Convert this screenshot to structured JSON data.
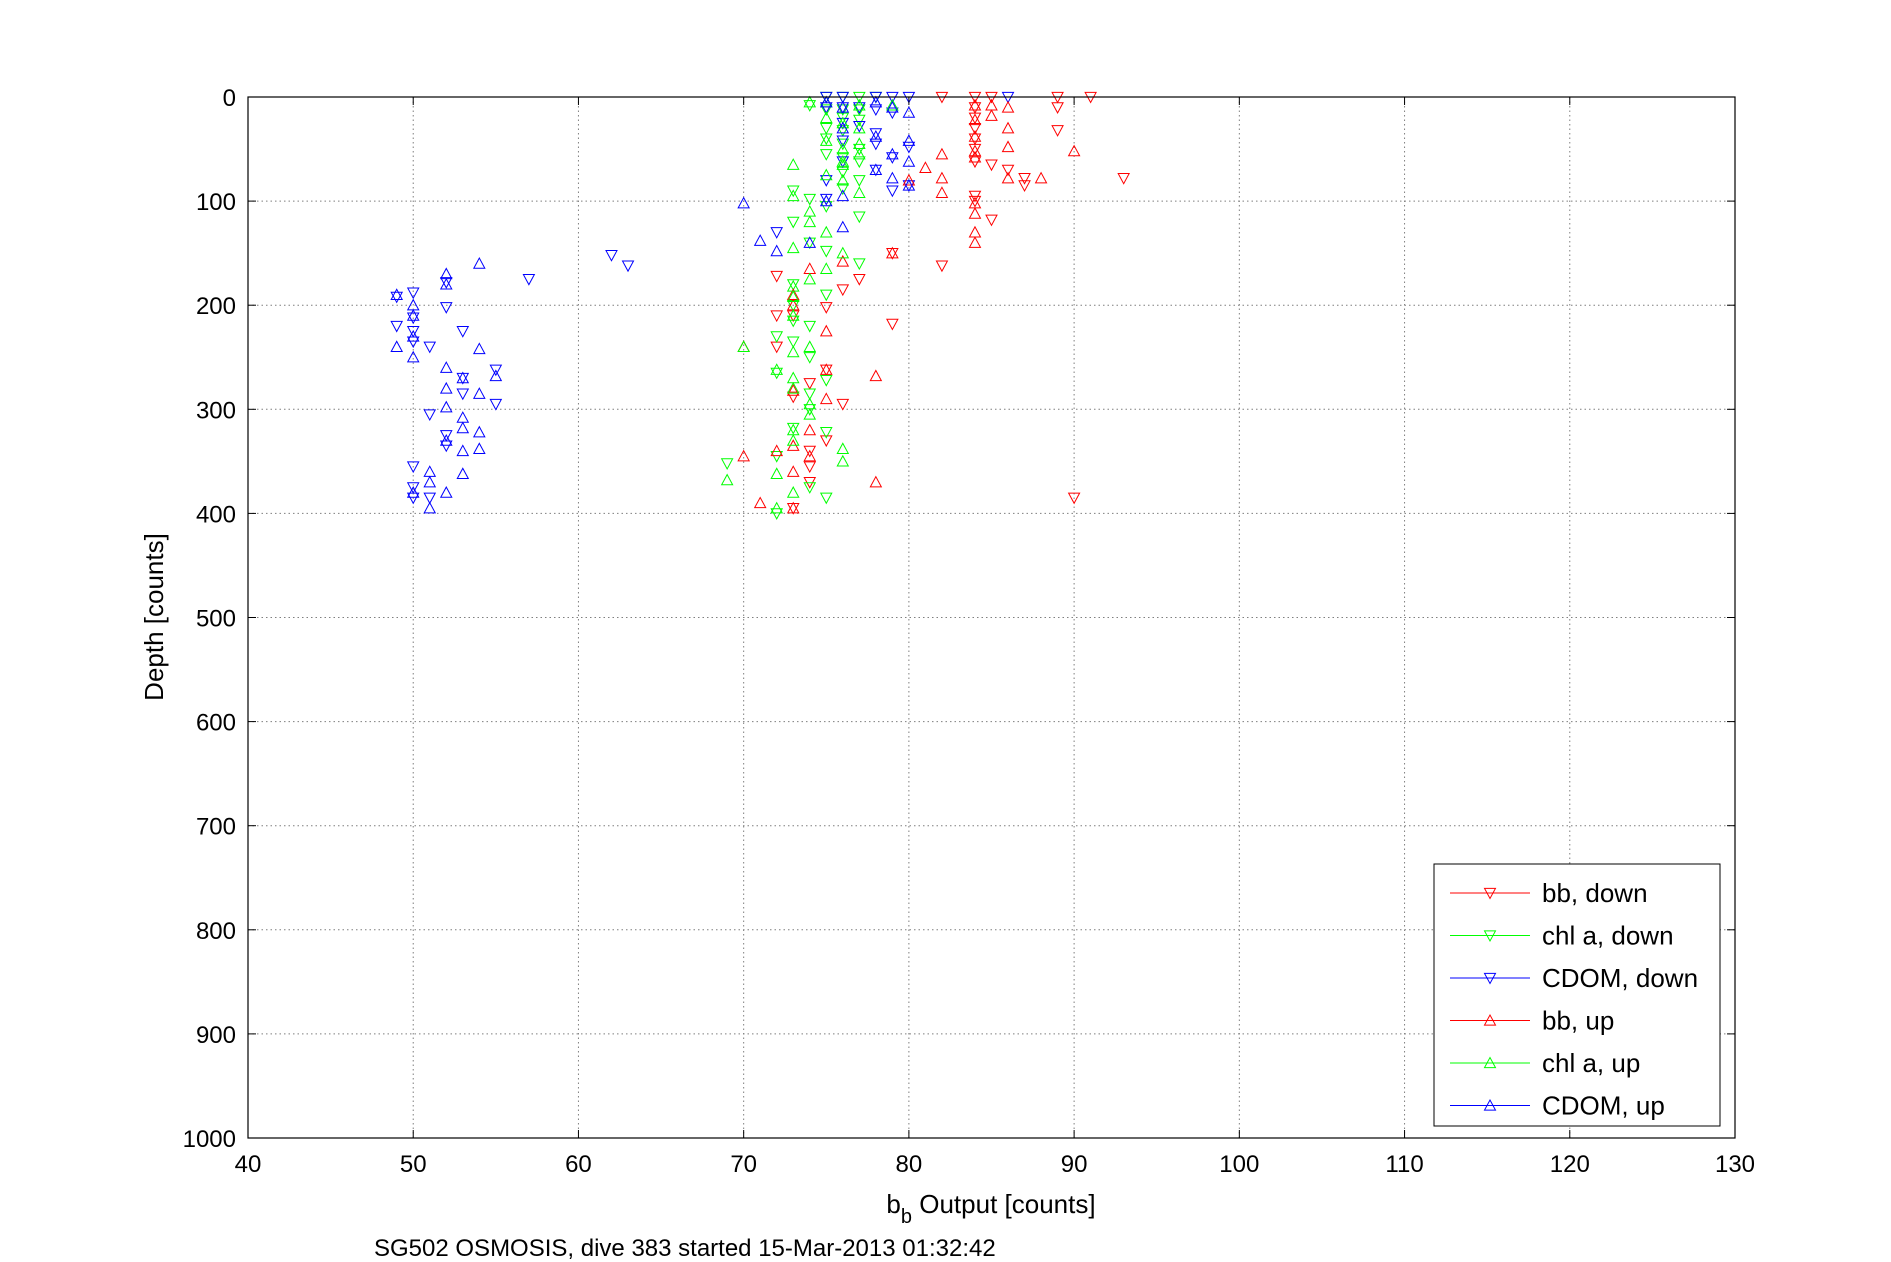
{
  "chart_data": {
    "type": "scatter",
    "title": "",
    "caption": "SG502 OSMOSIS, dive 383 started 15-Mar-2013 01:32:42",
    "xlabel_main": "b",
    "xlabel_sub": "b",
    "xlabel_rest": " Output [counts]",
    "ylabel": "Depth [counts]",
    "xlim": [
      40,
      130
    ],
    "ylim": [
      0,
      1000
    ],
    "y_reversed": true,
    "grid": true,
    "legend_position": "bottom-right",
    "xticks": [
      "40",
      "50",
      "60",
      "70",
      "80",
      "90",
      "100",
      "110",
      "120",
      "130"
    ],
    "yticks": [
      "0",
      "100",
      "200",
      "300",
      "400",
      "500",
      "600",
      "700",
      "800",
      "900",
      "1000"
    ],
    "series": [
      {
        "name": "bb, down",
        "color": "#ff0000",
        "marker": "triangle-down",
        "points": [
          [
            82,
            0
          ],
          [
            84,
            0
          ],
          [
            85,
            0
          ],
          [
            89,
            0
          ],
          [
            91,
            0
          ],
          [
            84,
            10
          ],
          [
            89,
            10
          ],
          [
            84,
            20
          ],
          [
            84,
            30
          ],
          [
            84,
            40
          ],
          [
            89,
            32
          ],
          [
            84,
            50
          ],
          [
            84,
            62
          ],
          [
            85,
            65
          ],
          [
            86,
            70
          ],
          [
            87,
            78
          ],
          [
            93,
            78
          ],
          [
            87,
            85
          ],
          [
            84,
            95
          ],
          [
            84,
            100
          ],
          [
            85,
            118
          ],
          [
            79,
            150
          ],
          [
            82,
            162
          ],
          [
            72,
            172
          ],
          [
            77,
            175
          ],
          [
            76,
            185
          ],
          [
            75,
            202
          ],
          [
            72,
            210
          ],
          [
            73,
            210
          ],
          [
            79,
            218
          ],
          [
            72,
            240
          ],
          [
            75,
            262
          ],
          [
            74,
            275
          ],
          [
            76,
            295
          ],
          [
            73,
            288
          ],
          [
            75,
            330
          ],
          [
            74,
            340
          ],
          [
            74,
            355
          ],
          [
            74,
            370
          ],
          [
            73,
            395
          ],
          [
            90,
            385
          ]
        ]
      },
      {
        "name": "chl a, down",
        "color": "#00ff00",
        "marker": "triangle-down",
        "points": [
          [
            75,
            0
          ],
          [
            76,
            0
          ],
          [
            77,
            0
          ],
          [
            78,
            0
          ],
          [
            74,
            8
          ],
          [
            75,
            12
          ],
          [
            76,
            12
          ],
          [
            77,
            12
          ],
          [
            76,
            20
          ],
          [
            77,
            22
          ],
          [
            75,
            30
          ],
          [
            76,
            32
          ],
          [
            75,
            40
          ],
          [
            76,
            45
          ],
          [
            77,
            50
          ],
          [
            75,
            55
          ],
          [
            76,
            58
          ],
          [
            77,
            62
          ],
          [
            76,
            72
          ],
          [
            77,
            80
          ],
          [
            76,
            88
          ],
          [
            73,
            90
          ],
          [
            74,
            98
          ],
          [
            75,
            105
          ],
          [
            77,
            115
          ],
          [
            73,
            120
          ],
          [
            74,
            140
          ],
          [
            75,
            148
          ],
          [
            77,
            160
          ],
          [
            73,
            180
          ],
          [
            75,
            190
          ],
          [
            73,
            200
          ],
          [
            73,
            215
          ],
          [
            74,
            220
          ],
          [
            72,
            230
          ],
          [
            73,
            235
          ],
          [
            74,
            250
          ],
          [
            72,
            265
          ],
          [
            75,
            272
          ],
          [
            74,
            285
          ],
          [
            74,
            300
          ],
          [
            73,
            318
          ],
          [
            75,
            322
          ],
          [
            72,
            345
          ],
          [
            69,
            352
          ],
          [
            74,
            375
          ],
          [
            75,
            385
          ],
          [
            72,
            400
          ]
        ]
      },
      {
        "name": "CDOM, down",
        "color": "#0000ff",
        "marker": "triangle-down",
        "points": [
          [
            75,
            0
          ],
          [
            76,
            0
          ],
          [
            78,
            0
          ],
          [
            79,
            0
          ],
          [
            80,
            0
          ],
          [
            86,
            0
          ],
          [
            75,
            10
          ],
          [
            76,
            10
          ],
          [
            77,
            10
          ],
          [
            78,
            12
          ],
          [
            79,
            15
          ],
          [
            76,
            25
          ],
          [
            77,
            28
          ],
          [
            78,
            35
          ],
          [
            76,
            42
          ],
          [
            78,
            45
          ],
          [
            80,
            48
          ],
          [
            79,
            58
          ],
          [
            76,
            62
          ],
          [
            78,
            70
          ],
          [
            75,
            80
          ],
          [
            79,
            90
          ],
          [
            80,
            85
          ],
          [
            75,
            98
          ],
          [
            72,
            130
          ],
          [
            62,
            152
          ],
          [
            63,
            162
          ],
          [
            57,
            175
          ],
          [
            52,
            178
          ],
          [
            49,
            192
          ],
          [
            50,
            188
          ],
          [
            52,
            202
          ],
          [
            50,
            212
          ],
          [
            50,
            225
          ],
          [
            49,
            220
          ],
          [
            53,
            225
          ],
          [
            50,
            235
          ],
          [
            51,
            240
          ],
          [
            53,
            270
          ],
          [
            55,
            262
          ],
          [
            55,
            295
          ],
          [
            53,
            285
          ],
          [
            51,
            305
          ],
          [
            52,
            325
          ],
          [
            52,
            335
          ],
          [
            50,
            355
          ],
          [
            50,
            375
          ],
          [
            51,
            385
          ],
          [
            50,
            385
          ]
        ]
      },
      {
        "name": "bb, up",
        "color": "#ff0000",
        "marker": "triangle-up",
        "points": [
          [
            84,
            8
          ],
          [
            85,
            8
          ],
          [
            86,
            10
          ],
          [
            85,
            18
          ],
          [
            84,
            22
          ],
          [
            86,
            30
          ],
          [
            84,
            38
          ],
          [
            86,
            48
          ],
          [
            84,
            52
          ],
          [
            82,
            55
          ],
          [
            90,
            52
          ],
          [
            84,
            58
          ],
          [
            81,
            68
          ],
          [
            82,
            78
          ],
          [
            86,
            78
          ],
          [
            88,
            78
          ],
          [
            80,
            80
          ],
          [
            82,
            92
          ],
          [
            84,
            102
          ],
          [
            84,
            112
          ],
          [
            84,
            130
          ],
          [
            84,
            140
          ],
          [
            79,
            150
          ],
          [
            76,
            158
          ],
          [
            74,
            165
          ],
          [
            73,
            190
          ],
          [
            73,
            200
          ],
          [
            75,
            225
          ],
          [
            70,
            240
          ],
          [
            75,
            262
          ],
          [
            78,
            268
          ],
          [
            73,
            282
          ],
          [
            75,
            290
          ],
          [
            74,
            320
          ],
          [
            73,
            335
          ],
          [
            74,
            345
          ],
          [
            72,
            340
          ],
          [
            70,
            345
          ],
          [
            73,
            360
          ],
          [
            78,
            370
          ],
          [
            71,
            390
          ],
          [
            73,
            395
          ]
        ]
      },
      {
        "name": "chl a, up",
        "color": "#00ff00",
        "marker": "triangle-up",
        "points": [
          [
            74,
            5
          ],
          [
            75,
            5
          ],
          [
            77,
            8
          ],
          [
            79,
            8
          ],
          [
            75,
            20
          ],
          [
            76,
            25
          ],
          [
            77,
            30
          ],
          [
            75,
            42
          ],
          [
            77,
            45
          ],
          [
            76,
            50
          ],
          [
            77,
            55
          ],
          [
            76,
            62
          ],
          [
            73,
            65
          ],
          [
            76,
            65
          ],
          [
            75,
            75
          ],
          [
            76,
            80
          ],
          [
            73,
            95
          ],
          [
            77,
            92
          ],
          [
            74,
            110
          ],
          [
            74,
            120
          ],
          [
            75,
            130
          ],
          [
            73,
            145
          ],
          [
            76,
            150
          ],
          [
            75,
            165
          ],
          [
            74,
            175
          ],
          [
            73,
            182
          ],
          [
            73,
            192
          ],
          [
            73,
            210
          ],
          [
            70,
            240
          ],
          [
            74,
            240
          ],
          [
            73,
            245
          ],
          [
            72,
            262
          ],
          [
            73,
            270
          ],
          [
            73,
            280
          ],
          [
            74,
            295
          ],
          [
            74,
            305
          ],
          [
            73,
            320
          ],
          [
            76,
            338
          ],
          [
            73,
            330
          ],
          [
            69,
            368
          ],
          [
            72,
            362
          ],
          [
            73,
            380
          ],
          [
            72,
            395
          ],
          [
            76,
            350
          ]
        ]
      },
      {
        "name": "CDOM, up",
        "color": "#0000ff",
        "marker": "triangle-up",
        "points": [
          [
            75,
            5
          ],
          [
            78,
            5
          ],
          [
            76,
            10
          ],
          [
            79,
            10
          ],
          [
            80,
            15
          ],
          [
            76,
            30
          ],
          [
            78,
            38
          ],
          [
            80,
            42
          ],
          [
            79,
            55
          ],
          [
            80,
            62
          ],
          [
            78,
            70
          ],
          [
            79,
            78
          ],
          [
            80,
            85
          ],
          [
            76,
            95
          ],
          [
            75,
            100
          ],
          [
            70,
            102
          ],
          [
            76,
            125
          ],
          [
            71,
            138
          ],
          [
            74,
            140
          ],
          [
            72,
            148
          ],
          [
            54,
            160
          ],
          [
            52,
            170
          ],
          [
            52,
            180
          ],
          [
            49,
            190
          ],
          [
            50,
            200
          ],
          [
            50,
            210
          ],
          [
            50,
            230
          ],
          [
            49,
            240
          ],
          [
            50,
            250
          ],
          [
            54,
            242
          ],
          [
            52,
            260
          ],
          [
            55,
            268
          ],
          [
            53,
            270
          ],
          [
            52,
            280
          ],
          [
            54,
            285
          ],
          [
            52,
            298
          ],
          [
            53,
            308
          ],
          [
            53,
            318
          ],
          [
            54,
            322
          ],
          [
            52,
            330
          ],
          [
            53,
            340
          ],
          [
            54,
            338
          ],
          [
            51,
            360
          ],
          [
            53,
            362
          ],
          [
            51,
            370
          ],
          [
            52,
            380
          ],
          [
            50,
            380
          ],
          [
            51,
            395
          ]
        ]
      }
    ]
  }
}
